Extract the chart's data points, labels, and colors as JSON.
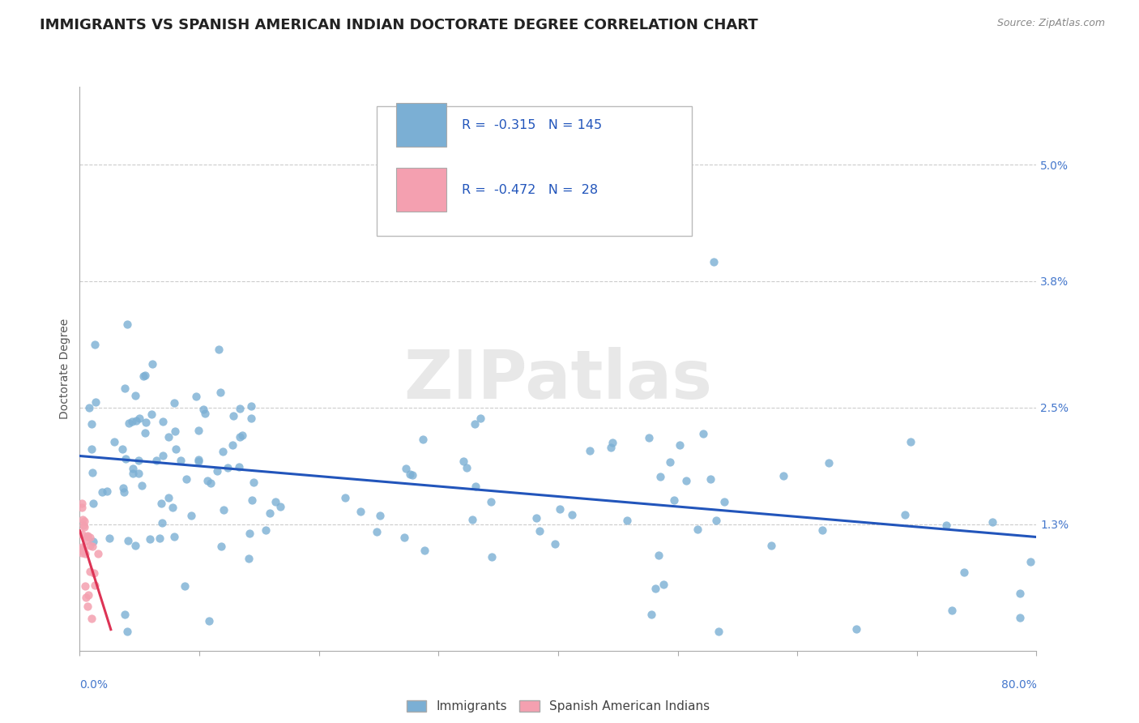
{
  "title": "IMMIGRANTS VS SPANISH AMERICAN INDIAN DOCTORATE DEGREE CORRELATION CHART",
  "source": "Source: ZipAtlas.com",
  "ylabel": "Doctorate Degree",
  "ytick_labels": [
    "1.3%",
    "2.5%",
    "3.8%",
    "5.0%"
  ],
  "ytick_values": [
    0.013,
    0.025,
    0.038,
    0.05
  ],
  "xlim": [
    0.0,
    0.8
  ],
  "ylim": [
    0.0,
    0.058
  ],
  "legend1_R": "-0.315",
  "legend1_N": "145",
  "legend2_R": "-0.472",
  "legend2_N": "28",
  "watermark": "ZIPatlas",
  "blue_color": "#7BAFD4",
  "pink_color": "#F4A0B0",
  "blue_line_color": "#2255BB",
  "pink_line_color": "#DD3355",
  "background_color": "#FFFFFF",
  "grid_color": "#CCCCCC",
  "title_fontsize": 13,
  "source_fontsize": 9,
  "axis_fontsize": 10,
  "watermark_fontsize": 60
}
